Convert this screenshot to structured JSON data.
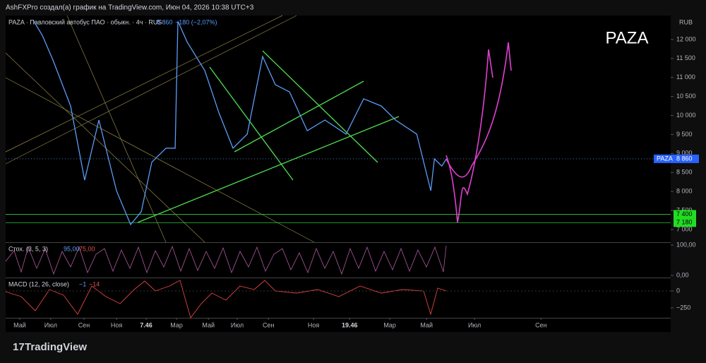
{
  "header": {
    "attribution": "AshFXPro создал(а) график на TradingView.com, Июн 04, 2026 10:38 UTC+3"
  },
  "chart_data": [
    {
      "type": "line",
      "title": "PAZA",
      "legend": "PAZA · Павловский автобус ПАО · обыкн. · 4ч · RUS",
      "legend_values": [
        "8 860",
        "−180 (−2,07%)"
      ],
      "y_unit": "RUB",
      "x": [
        0.83,
        1.33,
        1.96,
        3,
        3.83,
        4.67,
        5.71,
        6.54,
        7.17,
        7.79,
        8.63,
        9.17,
        9.33,
        9.88,
        10.92,
        11.75,
        12.58,
        13.42,
        14.33,
        15.08,
        15.92,
        16.96,
        18,
        19.25,
        20.29,
        21.33,
        22.17,
        23.42,
        24.25,
        24.46,
        24.9,
        25.17
      ],
      "series": [
        {
          "name": "PAZA",
          "color": "#5b9cf6",
          "values": [
            12480,
            12110,
            11460,
            10250,
            8300,
            9880,
            8020,
            7130,
            7470,
            8770,
            9140,
            9140,
            12480,
            11930,
            11180,
            10070,
            9140,
            9510,
            11550,
            10810,
            10620,
            9600,
            9880,
            9510,
            10440,
            10250,
            9880,
            9510,
            8020,
            8860,
            8670,
            8860
          ]
        }
      ],
      "xlim": [
        -0.83,
        38.4
      ],
      "ylim": [
        6665,
        12630
      ],
      "xticks": [
        {
          "value": 0,
          "label": "Май"
        },
        {
          "value": 1.83,
          "label": "Июл"
        },
        {
          "value": 3.79,
          "label": "Сен"
        },
        {
          "value": 5.71,
          "label": "Ноя"
        },
        7.46,
        {
          "value": 9.25,
          "label": "Мар"
        },
        {
          "value": 11.13,
          "label": "Май"
        },
        {
          "value": 12.83,
          "label": "Июл"
        },
        {
          "value": 14.67,
          "label": "Сен"
        },
        {
          "value": 17.33,
          "label": "Ноя"
        },
        19.46,
        {
          "value": 21.83,
          "label": "Мар"
        },
        {
          "value": 24,
          "label": "Май"
        },
        {
          "value": 26.83,
          "label": "Июл"
        },
        {
          "value": 30.75,
          "label": "Сен"
        }
      ],
      "yticks": [
        {
          "value": 7000,
          "label": "7 000"
        },
        {
          "value": 7500,
          "label": "7 500"
        },
        {
          "value": 8000,
          "label": "8 000"
        },
        {
          "value": 8500,
          "label": "8 500"
        },
        {
          "value": 9000,
          "label": "9 000"
        },
        {
          "value": 9500,
          "label": "9 500"
        },
        {
          "value": 10000,
          "label": "10 000"
        },
        {
          "value": 10500,
          "label": "10 500"
        },
        {
          "value": 11000,
          "label": "11 000"
        },
        {
          "value": 11500,
          "label": "11 500"
        },
        {
          "value": 12000,
          "label": "12 000"
        }
      ],
      "last_price": {
        "value": 8860,
        "label": "8 860"
      },
      "levels": [
        {
          "value": 7400,
          "label": "7 400"
        },
        {
          "value": 7180,
          "label": "7 180"
        }
      ]
    },
    {
      "type": "oscillator",
      "title": "Стох. (3, 5, 3)",
      "legend_values": [
        "95,00",
        "75,00"
      ],
      "ylim": [
        -7,
        104.7
      ],
      "yticks": [
        {
          "value": 100,
          "label": "100,00"
        },
        {
          "value": 0,
          "label": "0,00"
        }
      ]
    },
    {
      "type": "oscillator",
      "title": "MACD (12, 26, close)",
      "legend_values": [
        "−1",
        "−14"
      ],
      "ylim": [
        -396,
        177
      ],
      "yticks": [
        0,
        {
          "value": -250,
          "label": "−250"
        }
      ]
    }
  ],
  "footer": {
    "brand": "TradingView"
  }
}
